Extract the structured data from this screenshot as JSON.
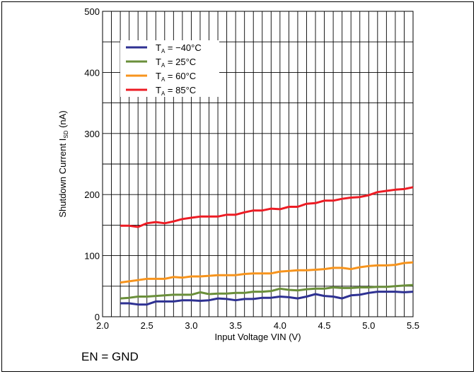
{
  "footnote": "EN = GND",
  "chart_data": {
    "type": "line",
    "xlabel": "Input Voltage VIN (V)",
    "ylabel_main": "Shutdown Current I",
    "ylabel_sub": "SD",
    "ylabel_unit": " (nA)",
    "xlim": [
      2.0,
      5.5
    ],
    "ylim": [
      0,
      500
    ],
    "xticks": [
      "2.0",
      "2.5",
      "3.0",
      "3.5",
      "4.0",
      "4.5",
      "5.0",
      "5.5"
    ],
    "yticks": [
      "0",
      "100",
      "200",
      "300",
      "400",
      "500"
    ],
    "grid": true,
    "legend_position": "top-left",
    "x": [
      2.2,
      2.3,
      2.4,
      2.5,
      2.6,
      2.7,
      2.8,
      2.9,
      3.0,
      3.1,
      3.2,
      3.3,
      3.4,
      3.5,
      3.6,
      3.7,
      3.8,
      3.9,
      4.0,
      4.1,
      4.2,
      4.3,
      4.4,
      4.5,
      4.6,
      4.7,
      4.8,
      4.9,
      5.0,
      5.1,
      5.2,
      5.3,
      5.4,
      5.5
    ],
    "series": [
      {
        "name_main": "T",
        "name_sub": "A",
        "name_rest": " = −40°C",
        "color": "#2e3192",
        "values": [
          22,
          22,
          20,
          20,
          25,
          25,
          25,
          27,
          27,
          26,
          27,
          30,
          29,
          27,
          29,
          29,
          31,
          31,
          33,
          32,
          30,
          33,
          37,
          34,
          33,
          30,
          35,
          36,
          39,
          41,
          41,
          41,
          40,
          41
        ]
      },
      {
        "name_main": "T",
        "name_sub": "A",
        "name_rest": " =  25°C",
        "color": "#6a8f3a",
        "values": [
          30,
          31,
          33,
          33,
          34,
          35,
          36,
          36,
          36,
          40,
          37,
          38,
          38,
          39,
          39,
          41,
          41,
          42,
          46,
          44,
          43,
          45,
          46,
          46,
          48,
          47,
          47,
          48,
          48,
          49,
          49,
          50,
          51,
          52
        ]
      },
      {
        "name_main": "T",
        "name_sub": "A",
        "name_rest": " =  60°C",
        "color": "#f7941d",
        "values": [
          56,
          58,
          60,
          62,
          62,
          62,
          65,
          64,
          66,
          66,
          67,
          68,
          68,
          68,
          70,
          71,
          71,
          71,
          74,
          75,
          76,
          76,
          77,
          78,
          80,
          80,
          78,
          81,
          83,
          84,
          84,
          85,
          88,
          89
        ]
      },
      {
        "name_main": "T",
        "name_sub": "A",
        "name_rest": " =  85°C",
        "color": "#ed1c24",
        "values": [
          149,
          149,
          147,
          153,
          155,
          153,
          156,
          160,
          162,
          164,
          164,
          164,
          167,
          167,
          171,
          174,
          174,
          177,
          176,
          180,
          180,
          185,
          186,
          190,
          190,
          193,
          195,
          196,
          199,
          204,
          206,
          208,
          209,
          212
        ]
      }
    ]
  }
}
